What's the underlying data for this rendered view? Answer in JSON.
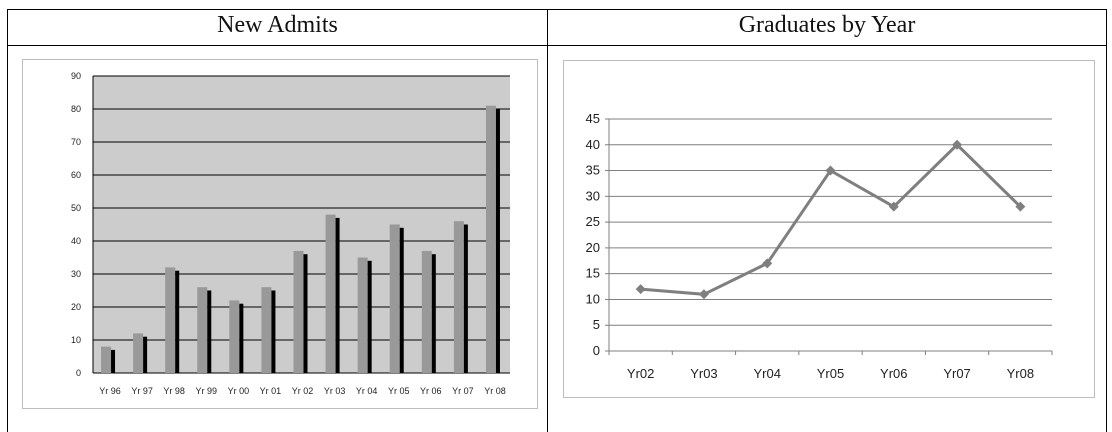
{
  "cells": {
    "left_title": "New Admits",
    "right_title": "Graduates by Year"
  },
  "chart_data": [
    {
      "type": "bar",
      "title": "New Admits",
      "categories": [
        "Yr 96",
        "Yr 97",
        "Yr 98",
        "Yr 99",
        "Yr 00",
        "Yr 01",
        "Yr 02",
        "Yr 03",
        "Yr 04",
        "Yr 05",
        "Yr 06",
        "Yr 07",
        "Yr 08"
      ],
      "series": [
        {
          "values": [
            8,
            12,
            32,
            26,
            22,
            26,
            37,
            48,
            35,
            45,
            37,
            46,
            81
          ],
          "color": "#999999"
        },
        {
          "values": [
            7,
            11,
            31,
            25,
            21,
            25,
            36,
            47,
            34,
            44,
            36,
            45,
            80
          ],
          "color": "#000000"
        }
      ],
      "ylim": [
        0,
        90
      ],
      "yticks": [
        0,
        10,
        20,
        30,
        40,
        50,
        60,
        70,
        80,
        90
      ],
      "plot_background": "#cccccc",
      "grid": true,
      "legend": "none"
    },
    {
      "type": "line",
      "title": "Graduates by Year",
      "categories": [
        "Yr02",
        "Yr03",
        "Yr04",
        "Yr05",
        "Yr06",
        "Yr07",
        "Yr08"
      ],
      "series": [
        {
          "values": [
            12,
            11,
            17,
            35,
            28,
            40,
            28
          ],
          "color": "#7f7f7f",
          "marker": "diamond"
        }
      ],
      "ylim": [
        0,
        45
      ],
      "yticks": [
        0,
        5,
        10,
        15,
        20,
        25,
        30,
        35,
        40,
        45
      ],
      "grid": true,
      "legend": "none"
    }
  ]
}
